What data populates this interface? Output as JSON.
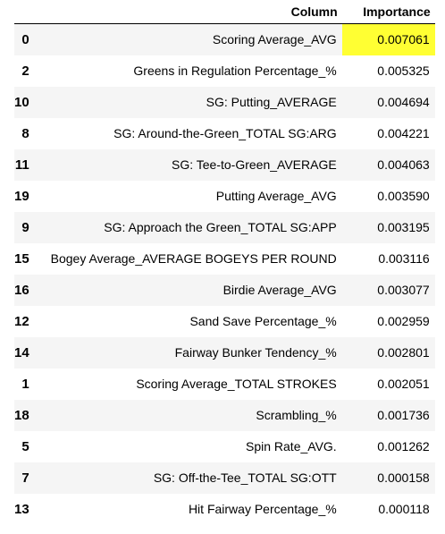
{
  "table": {
    "headers": {
      "index": "",
      "column": "Column",
      "importance": "Importance"
    },
    "highlight_color": "#ffff33",
    "rows": [
      {
        "index": "0",
        "column": "Scoring Average_AVG",
        "importance": "0.007061",
        "highlighted": true
      },
      {
        "index": "2",
        "column": "Greens in Regulation Percentage_%",
        "importance": "0.005325",
        "highlighted": false
      },
      {
        "index": "10",
        "column": "SG: Putting_AVERAGE",
        "importance": "0.004694",
        "highlighted": false
      },
      {
        "index": "8",
        "column": "SG: Around-the-Green_TOTAL SG:ARG",
        "importance": "0.004221",
        "highlighted": false
      },
      {
        "index": "11",
        "column": "SG: Tee-to-Green_AVERAGE",
        "importance": "0.004063",
        "highlighted": false
      },
      {
        "index": "19",
        "column": "Putting Average_AVG",
        "importance": "0.003590",
        "highlighted": false
      },
      {
        "index": "9",
        "column": "SG: Approach the Green_TOTAL SG:APP",
        "importance": "0.003195",
        "highlighted": false
      },
      {
        "index": "15",
        "column": "Bogey Average_AVERAGE BOGEYS PER ROUND",
        "importance": "0.003116",
        "highlighted": false
      },
      {
        "index": "16",
        "column": "Birdie Average_AVG",
        "importance": "0.003077",
        "highlighted": false
      },
      {
        "index": "12",
        "column": "Sand Save Percentage_%",
        "importance": "0.002959",
        "highlighted": false
      },
      {
        "index": "14",
        "column": "Fairway Bunker Tendency_%",
        "importance": "0.002801",
        "highlighted": false
      },
      {
        "index": "1",
        "column": "Scoring Average_TOTAL STROKES",
        "importance": "0.002051",
        "highlighted": false
      },
      {
        "index": "18",
        "column": "Scrambling_%",
        "importance": "0.001736",
        "highlighted": false
      },
      {
        "index": "5",
        "column": "Spin Rate_AVG.",
        "importance": "0.001262",
        "highlighted": false
      },
      {
        "index": "7",
        "column": "SG: Off-the-Tee_TOTAL SG:OTT",
        "importance": "0.000158",
        "highlighted": false
      },
      {
        "index": "13",
        "column": "Hit Fairway Percentage_%",
        "importance": "0.000118",
        "highlighted": false
      }
    ]
  }
}
